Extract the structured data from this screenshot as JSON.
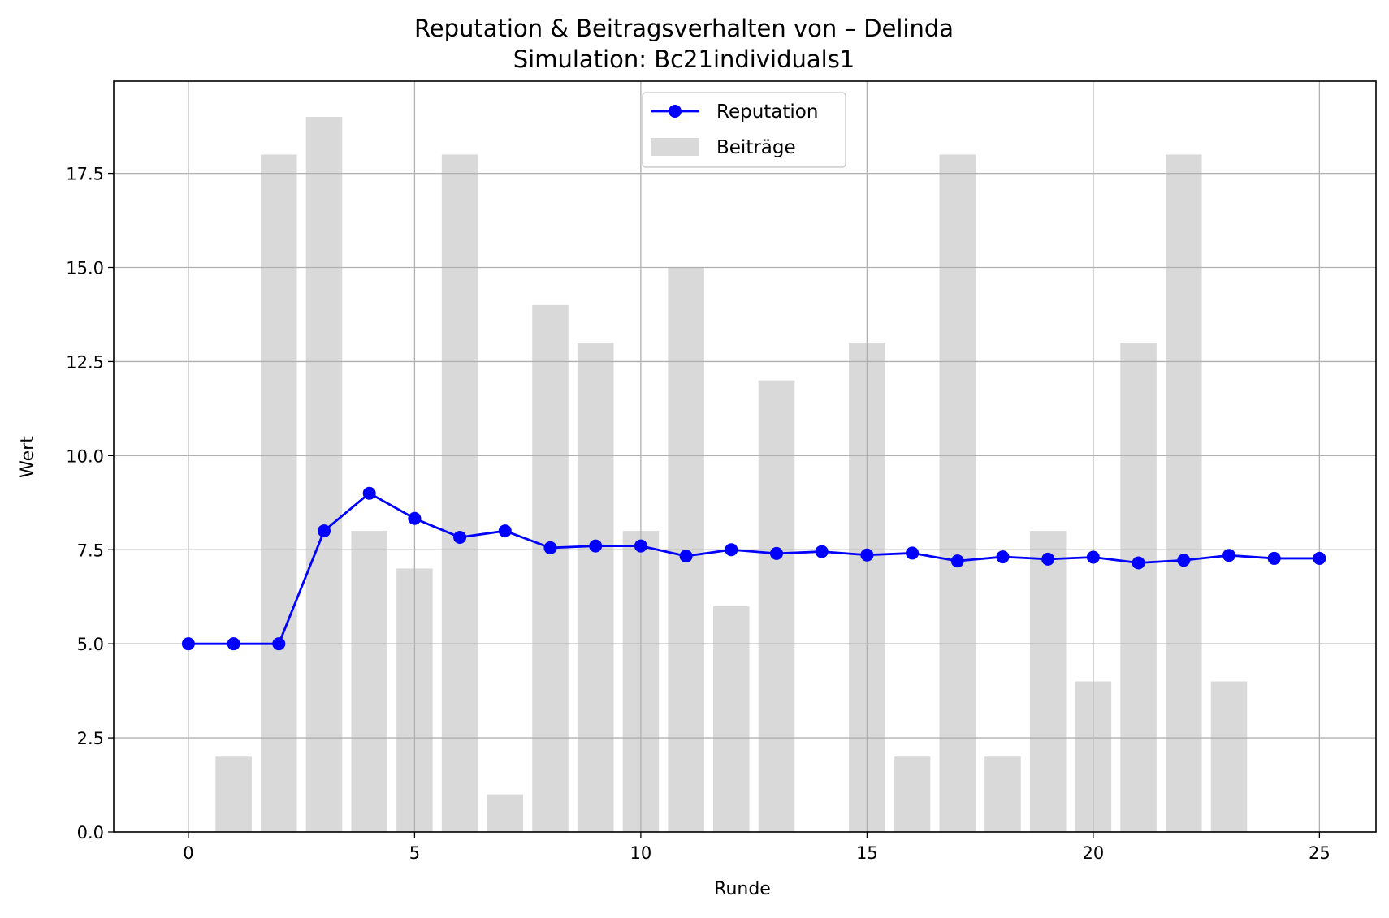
{
  "chart_data": {
    "type": "bar",
    "title": "Reputation & Beitragsverhalten von – Delinda",
    "subtitle": "Simulation: Bc21individuals1",
    "xlabel": "Runde",
    "ylabel": "Wert",
    "xlim": [
      -1.65,
      26.25
    ],
    "ylim": [
      0,
      19.95
    ],
    "xticks": [
      "0",
      "5",
      "10",
      "15",
      "20",
      "25"
    ],
    "yticks": [
      "0.0",
      "2.5",
      "5.0",
      "7.5",
      "10.0",
      "12.5",
      "15.0",
      "17.5"
    ],
    "grid": true,
    "legend_position": "top-center",
    "colors": {
      "reputation": "#0000ff",
      "beitraege": "#d9d9d9",
      "grid": "#b0b0b0"
    },
    "series": [
      {
        "name": "Beiträge",
        "kind": "bar",
        "x": [
          1,
          2,
          3,
          4,
          5,
          6,
          7,
          8,
          9,
          10,
          11,
          12,
          13,
          15,
          16,
          17,
          18,
          19,
          20,
          21,
          22,
          23
        ],
        "values": [
          2,
          18,
          19,
          8,
          7,
          18,
          1,
          14,
          13,
          8,
          15,
          6,
          12,
          13,
          2,
          18,
          2,
          8,
          4,
          13,
          18,
          4
        ]
      },
      {
        "name": "Reputation",
        "kind": "line",
        "x": [
          0,
          1,
          2,
          3,
          4,
          5,
          6,
          7,
          8,
          9,
          10,
          11,
          12,
          13,
          14,
          15,
          16,
          17,
          18,
          19,
          20,
          21,
          22,
          23,
          24,
          25
        ],
        "values": [
          5.0,
          5.0,
          5.0,
          8.0,
          9.0,
          8.33,
          7.83,
          8.0,
          7.55,
          7.6,
          7.6,
          7.33,
          7.5,
          7.4,
          7.45,
          7.36,
          7.41,
          7.2,
          7.31,
          7.25,
          7.3,
          7.15,
          7.22,
          7.35,
          7.27,
          7.27
        ]
      }
    ]
  }
}
